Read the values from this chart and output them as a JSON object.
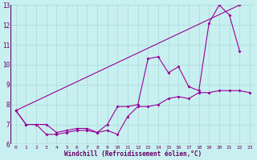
{
  "xlabel": "Windchill (Refroidissement éolien,°C)",
  "xlim": [
    -0.5,
    23.5
  ],
  "ylim": [
    6,
    13
  ],
  "yticks": [
    6,
    7,
    8,
    9,
    10,
    11,
    12,
    13
  ],
  "xticks": [
    0,
    1,
    2,
    3,
    4,
    5,
    6,
    7,
    8,
    9,
    10,
    11,
    12,
    13,
    14,
    15,
    16,
    17,
    18,
    19,
    20,
    21,
    22,
    23
  ],
  "background_color": "#c8f0f0",
  "line_color": "#990099",
  "series": [
    {
      "x": [
        0,
        1,
        2,
        3,
        4,
        5,
        6,
        7,
        8,
        9,
        10,
        11,
        12,
        13,
        14,
        15,
        16,
        17,
        18,
        19,
        20,
        21,
        22,
        23
      ],
      "y": [
        7.7,
        7.0,
        7.0,
        6.5,
        6.5,
        6.6,
        6.7,
        6.7,
        6.6,
        6.7,
        6.5,
        7.4,
        7.9,
        7.9,
        8.0,
        8.3,
        8.4,
        8.3,
        8.6,
        8.6,
        8.7,
        8.7,
        8.7,
        8.6
      ]
    },
    {
      "x": [
        0,
        1,
        2,
        3,
        4,
        5,
        6,
        7,
        8,
        9,
        10,
        11,
        12,
        13,
        14,
        15,
        16,
        17,
        18,
        19,
        20,
        21,
        22
      ],
      "y": [
        7.7,
        7.0,
        7.0,
        7.0,
        6.6,
        6.7,
        6.8,
        6.8,
        6.6,
        7.0,
        7.9,
        7.9,
        8.0,
        10.3,
        10.4,
        9.6,
        9.9,
        8.9,
        8.7,
        12.1,
        13.0,
        12.5,
        10.7
      ]
    },
    {
      "x": [
        0,
        22
      ],
      "y": [
        7.7,
        13.0
      ]
    }
  ]
}
